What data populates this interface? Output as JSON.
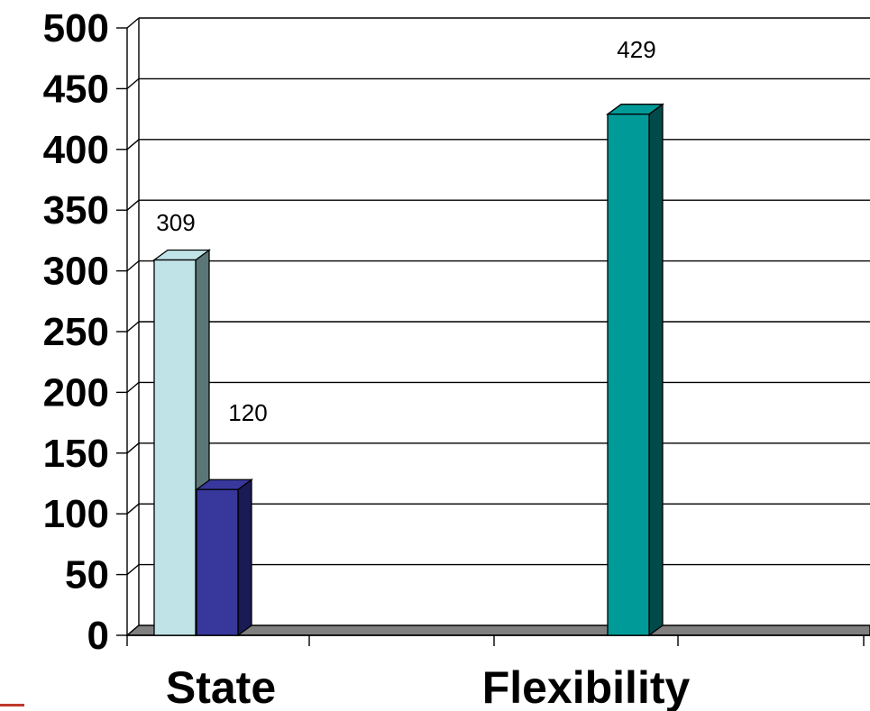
{
  "chart_data": {
    "type": "bar",
    "style": "3d-clustered-column",
    "categories": [
      "State",
      "Flexibility"
    ],
    "series": [
      {
        "color": "#bfe3e6",
        "side_color": "#5b7676",
        "values": [
          309,
          null
        ]
      },
      {
        "color": "#37379c",
        "side_color": "#1a1a55",
        "values": [
          120,
          null
        ]
      },
      {
        "color": "#009a99",
        "side_color": "#004a4a",
        "values": [
          null,
          429
        ]
      }
    ],
    "data_labels": [
      {
        "series": 0,
        "category": 0,
        "text": "309"
      },
      {
        "series": 1,
        "category": 0,
        "text": "120"
      },
      {
        "series": 2,
        "category": 1,
        "text": "429"
      }
    ],
    "yticks": [
      "0",
      "50",
      "100",
      "150",
      "200",
      "250",
      "300",
      "350",
      "400",
      "450",
      "500"
    ],
    "ylim": [
      0,
      500
    ],
    "title": "",
    "xlabel": "",
    "ylabel": "",
    "grid": true,
    "legend": "none"
  }
}
